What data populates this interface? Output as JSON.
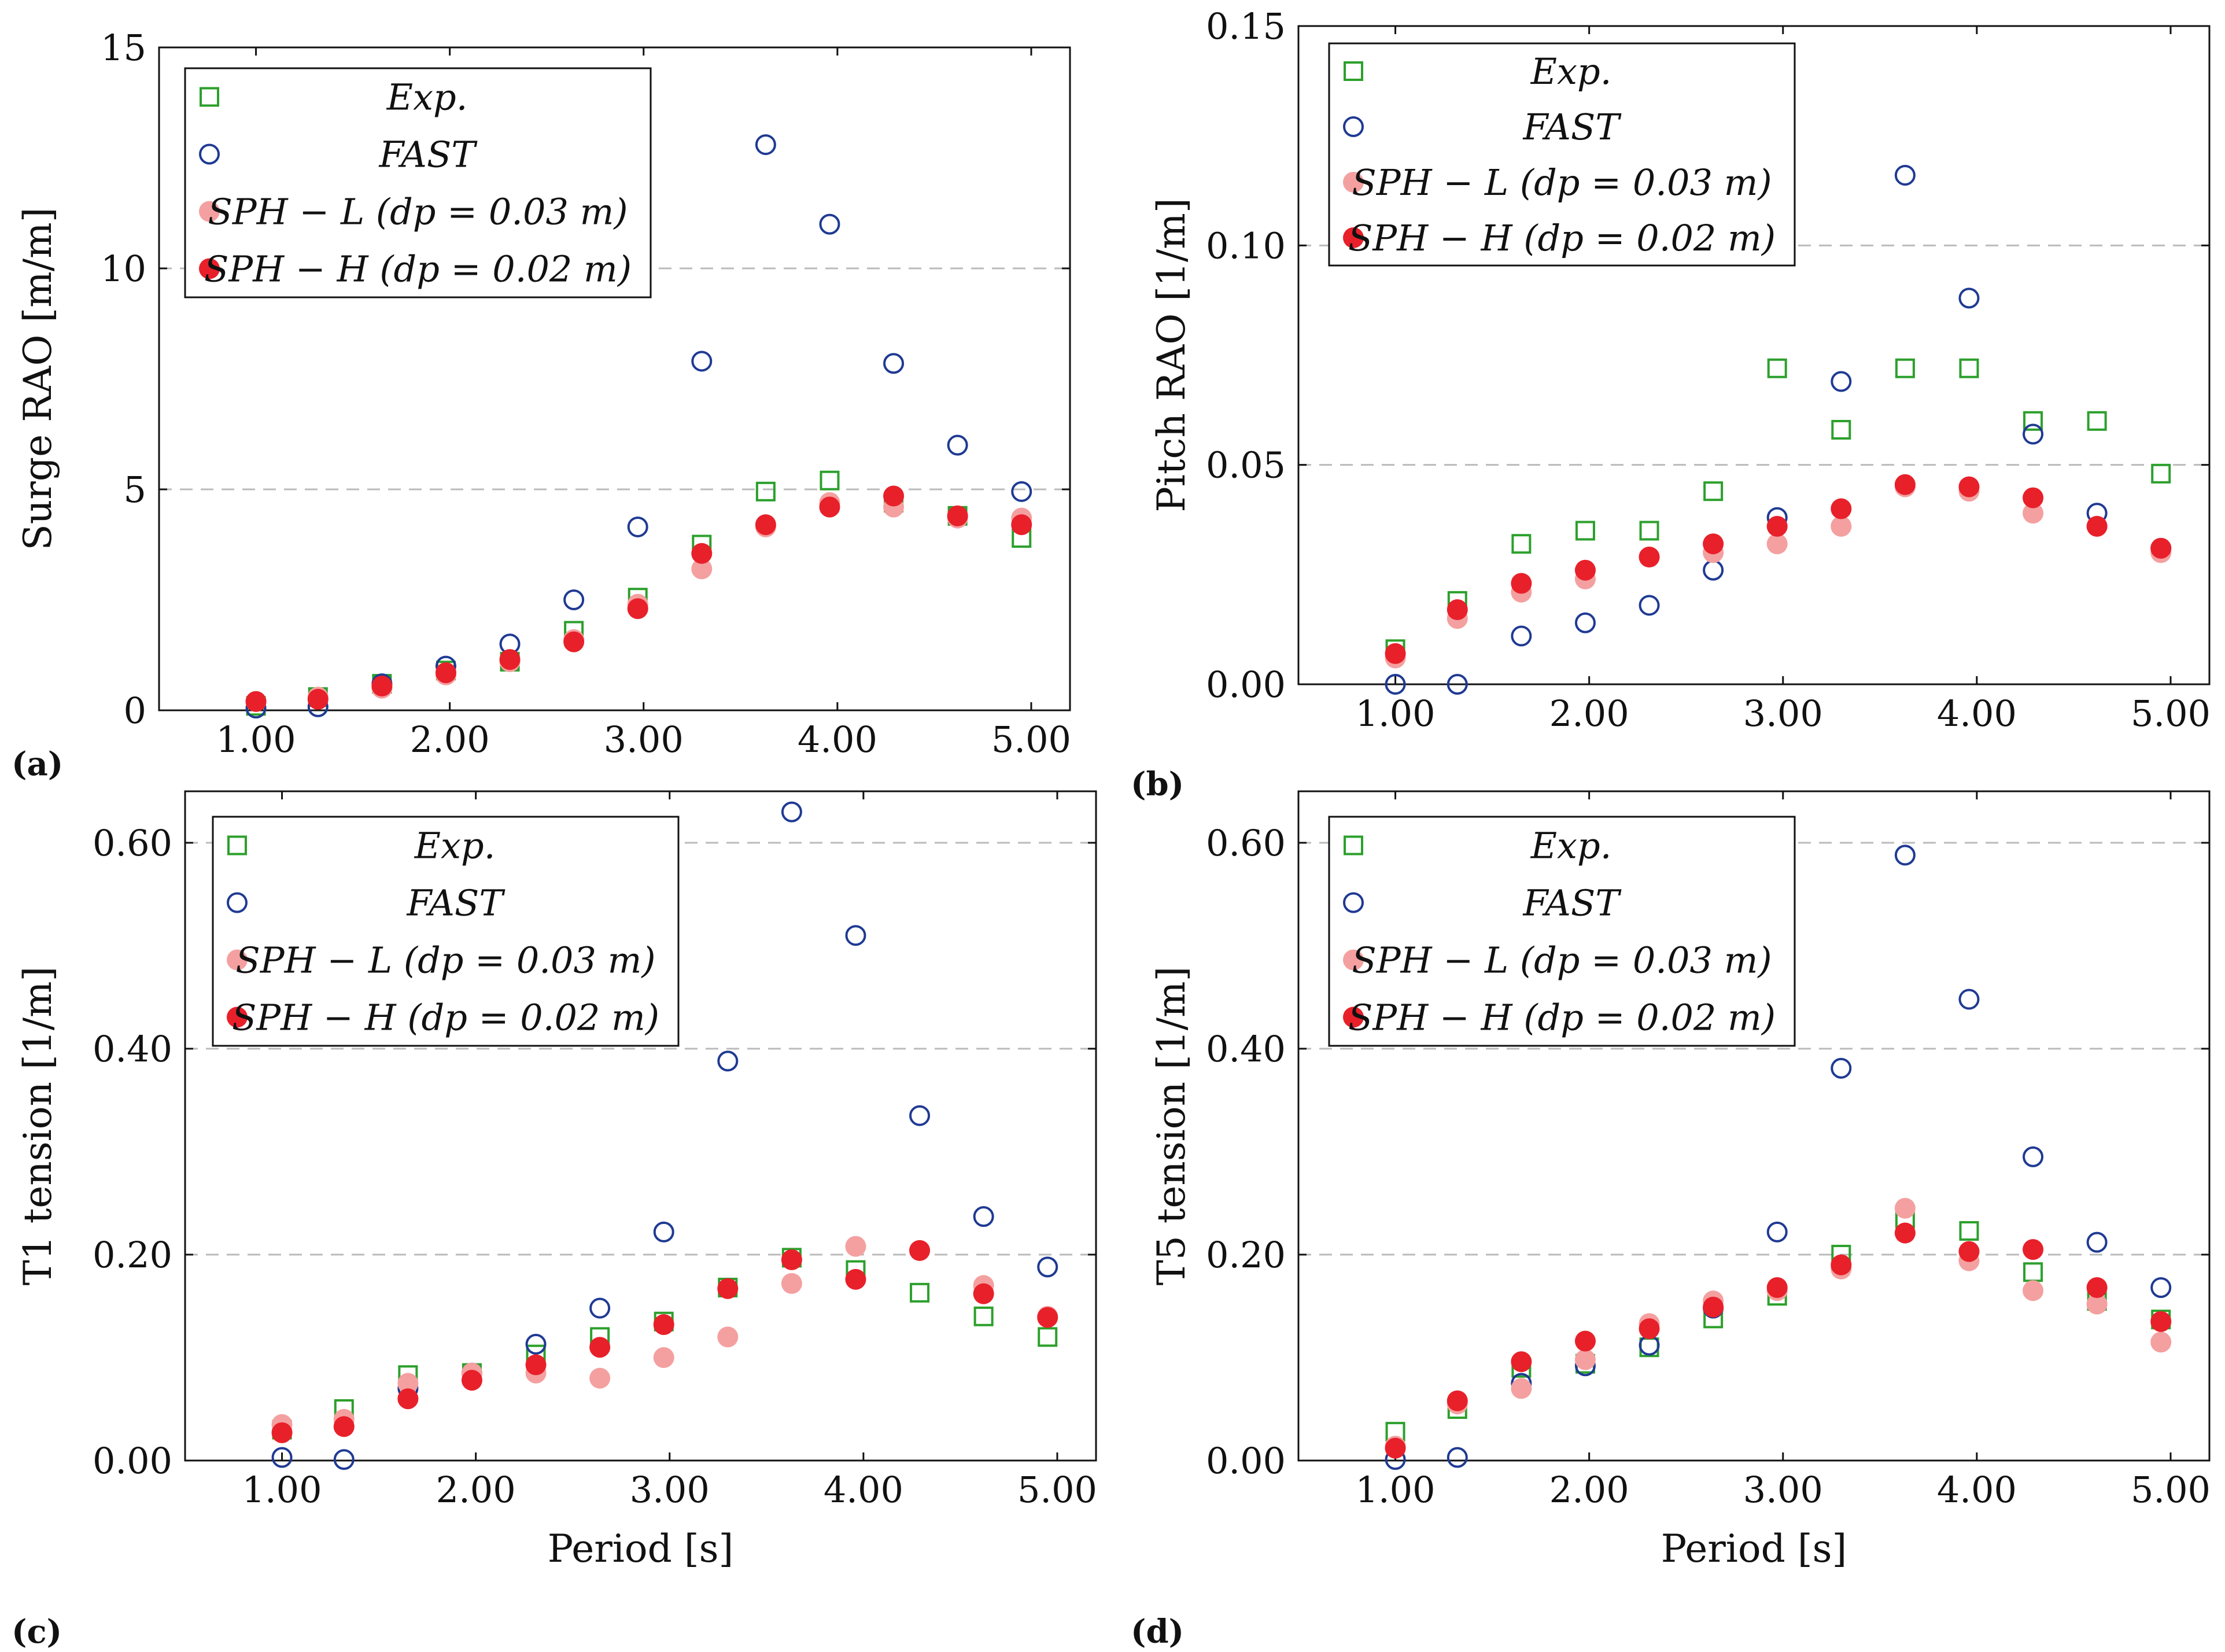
{
  "colors": {
    "exp": "#2ca02c",
    "fast": "#1f3a93",
    "sph_l": "#f4a0a0",
    "sph_h": "#e8202a",
    "grid": "#bbbbbb",
    "axis": "#111111"
  },
  "legend_labels": [
    "Exp.",
    "FAST",
    "SPH − L (dp = 0.03 m)",
    "SPH − H (dp = 0.02 m)"
  ],
  "chart_data": [
    {
      "type": "scatter",
      "panel_label": "(a)",
      "xlabel": "",
      "ylabel": "Surge RAO [m/m]",
      "xlim": [
        0.5,
        5.2
      ],
      "ylim": [
        0,
        15
      ],
      "xticks": [
        1,
        2,
        3,
        4,
        5
      ],
      "xtick_labels": [
        "1.00",
        "2.00",
        "3.00",
        "4.00",
        "5.00"
      ],
      "yticks": [
        0,
        5,
        10,
        15
      ],
      "ytick_labels": [
        "0",
        "5",
        "10",
        "15"
      ],
      "grid_y": [
        5,
        10
      ],
      "legend_position": "top-left",
      "series": [
        {
          "name": "Exp.",
          "marker": "square-open",
          "x": [
            1.0,
            1.32,
            1.65,
            1.98,
            2.31,
            2.64,
            2.97,
            3.3,
            3.63,
            3.96,
            4.29,
            4.62,
            4.95
          ],
          "y": [
            0.1,
            0.3,
            0.6,
            0.9,
            1.1,
            1.8,
            2.55,
            3.75,
            4.95,
            5.2,
            4.7,
            4.4,
            3.9
          ]
        },
        {
          "name": "FAST",
          "marker": "circle-open",
          "x": [
            1.0,
            1.32,
            1.65,
            1.98,
            2.31,
            2.64,
            2.97,
            3.3,
            3.63,
            3.96,
            4.29,
            4.62,
            4.95
          ],
          "y": [
            0.05,
            0.08,
            0.6,
            1.0,
            1.5,
            2.5,
            4.15,
            7.9,
            12.8,
            11.0,
            7.85,
            6.0,
            4.95
          ]
        },
        {
          "name": "SPH − L (dp = 0.03 m)",
          "marker": "circle-filled",
          "x": [
            1.0,
            1.32,
            1.65,
            1.98,
            2.31,
            2.64,
            2.97,
            3.3,
            3.63,
            3.96,
            4.29,
            4.62,
            4.95
          ],
          "y": [
            0.2,
            0.3,
            0.5,
            0.8,
            1.1,
            1.6,
            2.4,
            3.2,
            4.15,
            4.7,
            4.6,
            4.35,
            4.35
          ]
        },
        {
          "name": "SPH − H (dp = 0.02 m)",
          "marker": "circle-filled",
          "x": [
            1.0,
            1.32,
            1.65,
            1.98,
            2.31,
            2.64,
            2.97,
            3.3,
            3.63,
            3.96,
            4.29,
            4.62,
            4.95
          ],
          "y": [
            0.2,
            0.25,
            0.55,
            0.85,
            1.15,
            1.55,
            2.3,
            3.55,
            4.2,
            4.6,
            4.85,
            4.4,
            4.2
          ]
        }
      ]
    },
    {
      "type": "scatter",
      "panel_label": "(b)",
      "xlabel": "",
      "ylabel": "Pitch RAO [1/m]",
      "xlim": [
        0.5,
        5.2
      ],
      "ylim": [
        0,
        0.15
      ],
      "xticks": [
        1,
        2,
        3,
        4,
        5
      ],
      "xtick_labels": [
        "1.00",
        "2.00",
        "3.00",
        "4.00",
        "5.00"
      ],
      "yticks": [
        0,
        0.05,
        0.1,
        0.15
      ],
      "ytick_labels": [
        "0.00",
        "0.05",
        "0.10",
        "0.15"
      ],
      "grid_y": [
        0.05,
        0.1
      ],
      "legend_position": "top-left",
      "series": [
        {
          "name": "Exp.",
          "marker": "square-open",
          "x": [
            1.0,
            1.32,
            1.65,
            1.98,
            2.31,
            2.64,
            2.97,
            3.3,
            3.63,
            3.96,
            4.29,
            4.62,
            4.95
          ],
          "y": [
            0.008,
            0.019,
            0.032,
            0.035,
            0.035,
            0.044,
            0.072,
            0.058,
            0.072,
            0.072,
            0.06,
            0.06,
            0.048
          ]
        },
        {
          "name": "FAST",
          "marker": "circle-open",
          "x": [
            1.0,
            1.32,
            1.65,
            1.98,
            2.31,
            2.64,
            2.97,
            3.3,
            3.63,
            3.96,
            4.29,
            4.62,
            4.95
          ],
          "y": [
            0.0,
            0.0,
            0.011,
            0.014,
            0.018,
            0.026,
            0.038,
            0.069,
            0.116,
            0.088,
            0.057,
            0.039,
            0.031
          ]
        },
        {
          "name": "SPH − L (dp = 0.03 m)",
          "marker": "circle-filled",
          "x": [
            1.0,
            1.32,
            1.65,
            1.98,
            2.31,
            2.64,
            2.97,
            3.3,
            3.63,
            3.96,
            4.29,
            4.62,
            4.95
          ],
          "y": [
            0.006,
            0.015,
            0.021,
            0.024,
            0.029,
            0.03,
            0.032,
            0.036,
            0.045,
            0.044,
            0.039,
            0.036,
            0.03
          ]
        },
        {
          "name": "SPH − H (dp = 0.02 m)",
          "marker": "circle-filled",
          "x": [
            1.0,
            1.32,
            1.65,
            1.98,
            2.31,
            2.64,
            2.97,
            3.3,
            3.63,
            3.96,
            4.29,
            4.62,
            4.95
          ],
          "y": [
            0.007,
            0.017,
            0.023,
            0.026,
            0.029,
            0.032,
            0.036,
            0.04,
            0.0455,
            0.045,
            0.0425,
            0.036,
            0.031
          ]
        }
      ]
    },
    {
      "type": "scatter",
      "panel_label": "(c)",
      "xlabel": "Period [s]",
      "ylabel": "T1 tension [1/m]",
      "xlim": [
        0.5,
        5.2
      ],
      "ylim": [
        0,
        0.65
      ],
      "xticks": [
        1,
        2,
        3,
        4,
        5
      ],
      "xtick_labels": [
        "1.00",
        "2.00",
        "3.00",
        "4.00",
        "5.00"
      ],
      "yticks": [
        0,
        0.2,
        0.4,
        0.6
      ],
      "ytick_labels": [
        "0.00",
        "0.20",
        "0.40",
        "0.60"
      ],
      "grid_y": [
        0.2,
        0.4,
        0.6
      ],
      "legend_position": "top-left",
      "series": [
        {
          "name": "Exp.",
          "marker": "square-open",
          "x": [
            1.0,
            1.32,
            1.65,
            1.98,
            2.31,
            2.64,
            2.97,
            3.3,
            3.63,
            3.96,
            4.29,
            4.62,
            4.95
          ],
          "y": [
            0.03,
            0.05,
            0.083,
            0.085,
            0.103,
            0.12,
            0.135,
            0.168,
            0.197,
            0.185,
            0.163,
            0.14,
            0.12
          ]
        },
        {
          "name": "FAST",
          "marker": "circle-open",
          "x": [
            1.0,
            1.32,
            1.65,
            1.98,
            2.31,
            2.64,
            2.97,
            3.3,
            3.63,
            3.96,
            4.29,
            4.62,
            4.95
          ],
          "y": [
            0.003,
            0.001,
            0.07,
            0.085,
            0.113,
            0.148,
            0.222,
            0.388,
            0.63,
            0.51,
            0.335,
            0.237,
            0.188
          ]
        },
        {
          "name": "SPH − L (dp = 0.03 m)",
          "marker": "circle-filled",
          "x": [
            1.0,
            1.32,
            1.65,
            1.98,
            2.31,
            2.64,
            2.97,
            3.3,
            3.63,
            3.96,
            4.29,
            4.62,
            4.95
          ],
          "y": [
            0.035,
            0.04,
            0.075,
            0.085,
            0.085,
            0.08,
            0.1,
            0.12,
            0.172,
            0.208,
            0.204,
            0.17,
            0.14
          ]
        },
        {
          "name": "SPH − H (dp = 0.02 m)",
          "marker": "circle-filled",
          "x": [
            1.0,
            1.32,
            1.65,
            1.98,
            2.31,
            2.64,
            2.97,
            3.3,
            3.63,
            3.96,
            4.29,
            4.62,
            4.95
          ],
          "y": [
            0.027,
            0.033,
            0.06,
            0.078,
            0.093,
            0.11,
            0.132,
            0.167,
            0.195,
            0.176,
            0.204,
            0.162,
            0.139
          ]
        }
      ]
    },
    {
      "type": "scatter",
      "panel_label": "(d)",
      "xlabel": "Period [s]",
      "ylabel": "T5 tension [1/m]",
      "xlim": [
        0.5,
        5.2
      ],
      "ylim": [
        0,
        0.65
      ],
      "xticks": [
        1,
        2,
        3,
        4,
        5
      ],
      "xtick_labels": [
        "1.00",
        "2.00",
        "3.00",
        "4.00",
        "5.00"
      ],
      "yticks": [
        0,
        0.2,
        0.4,
        0.6
      ],
      "ytick_labels": [
        "0.00",
        "0.20",
        "0.40",
        "0.60"
      ],
      "grid_y": [
        0.2,
        0.4,
        0.6
      ],
      "legend_position": "top-left",
      "series": [
        {
          "name": "Exp.",
          "marker": "square-open",
          "x": [
            1.0,
            1.32,
            1.65,
            1.98,
            2.31,
            2.64,
            2.97,
            3.3,
            3.63,
            3.96,
            4.29,
            4.62,
            4.95
          ],
          "y": [
            0.028,
            0.05,
            0.09,
            0.094,
            0.11,
            0.138,
            0.16,
            0.2,
            0.235,
            0.223,
            0.183,
            0.155,
            0.137
          ]
        },
        {
          "name": "FAST",
          "marker": "circle-open",
          "x": [
            1.0,
            1.32,
            1.65,
            1.98,
            2.31,
            2.64,
            2.97,
            3.3,
            3.63,
            3.96,
            4.29,
            4.62,
            4.95
          ],
          "y": [
            0.001,
            0.003,
            0.075,
            0.092,
            0.112,
            0.148,
            0.222,
            0.381,
            0.588,
            0.448,
            0.295,
            0.212,
            0.168
          ]
        },
        {
          "name": "SPH − L (dp = 0.03 m)",
          "marker": "circle-filled",
          "x": [
            1.0,
            1.32,
            1.65,
            1.98,
            2.31,
            2.64,
            2.97,
            3.3,
            3.63,
            3.96,
            4.29,
            4.62,
            4.95
          ],
          "y": [
            0.014,
            0.055,
            0.07,
            0.098,
            0.133,
            0.155,
            0.165,
            0.186,
            0.245,
            0.194,
            0.165,
            0.152,
            0.115
          ]
        },
        {
          "name": "SPH − H (dp = 0.02 m)",
          "marker": "circle-filled",
          "x": [
            1.0,
            1.32,
            1.65,
            1.98,
            2.31,
            2.64,
            2.97,
            3.3,
            3.63,
            3.96,
            4.29,
            4.62,
            4.95
          ],
          "y": [
            0.012,
            0.058,
            0.096,
            0.116,
            0.128,
            0.149,
            0.168,
            0.19,
            0.221,
            0.203,
            0.205,
            0.168,
            0.135
          ]
        }
      ]
    }
  ]
}
